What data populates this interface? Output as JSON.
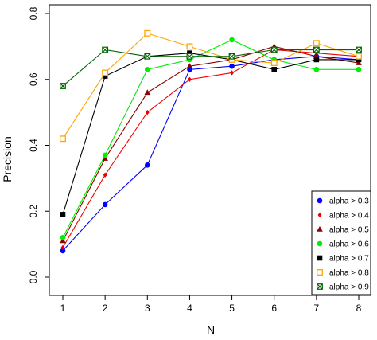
{
  "chart_data": {
    "type": "line",
    "title": "",
    "xlabel": "N",
    "ylabel": "Precision",
    "x": [
      1,
      2,
      3,
      4,
      5,
      6,
      7,
      8
    ],
    "xlim": [
      1,
      8
    ],
    "ylim": [
      0,
      0.8
    ],
    "x_ticks": [
      "1",
      "2",
      "3",
      "4",
      "5",
      "6",
      "7",
      "8"
    ],
    "y_ticks": [
      "0.0",
      "0.2",
      "0.4",
      "0.6",
      "0.8"
    ],
    "grid": false,
    "legend_position": "bottom-right",
    "series": [
      {
        "name": "alpha > 0.3",
        "color": "#0000ff",
        "marker": "circle",
        "values": [
          0.08,
          0.22,
          0.34,
          0.63,
          0.64,
          0.66,
          0.67,
          0.66
        ]
      },
      {
        "name": "alpha > 0.4",
        "color": "#ee0000",
        "marker": "diamond",
        "values": [
          0.09,
          0.31,
          0.5,
          0.6,
          0.62,
          0.69,
          0.68,
          0.67
        ]
      },
      {
        "name": "alpha > 0.5",
        "color": "#8b0000",
        "marker": "triangle",
        "values": [
          0.11,
          0.36,
          0.56,
          0.64,
          0.66,
          0.7,
          0.67,
          0.65
        ]
      },
      {
        "name": "alpha > 0.6",
        "color": "#00ee00",
        "marker": "circle",
        "values": [
          0.12,
          0.37,
          0.63,
          0.66,
          0.72,
          0.66,
          0.63,
          0.63
        ]
      },
      {
        "name": "alpha > 0.7",
        "color": "#000000",
        "marker": "square",
        "values": [
          0.19,
          0.61,
          0.67,
          0.68,
          0.66,
          0.63,
          0.66,
          0.66
        ]
      },
      {
        "name": "alpha > 0.8",
        "color": "#ffa500",
        "marker": "square-open",
        "values": [
          0.42,
          0.62,
          0.74,
          0.7,
          0.66,
          0.65,
          0.71,
          0.67
        ]
      },
      {
        "name": "alpha > 0.9",
        "color": "#006400",
        "marker": "square-crossed",
        "values": [
          0.58,
          0.69,
          0.67,
          0.67,
          0.67,
          0.69,
          0.69,
          0.69
        ]
      }
    ]
  }
}
